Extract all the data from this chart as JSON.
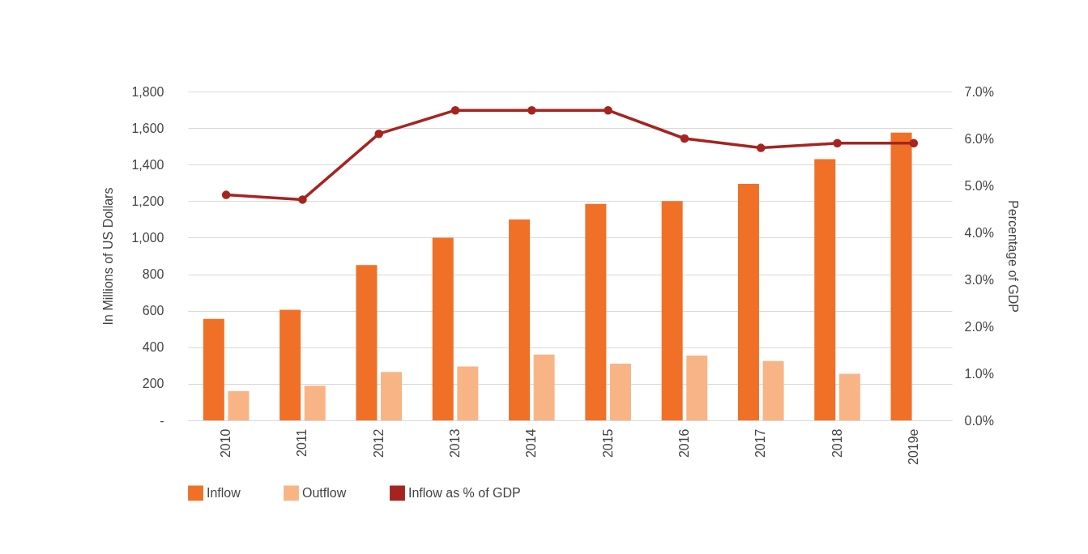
{
  "chart_data": {
    "type": "bar",
    "ylabel": "In Millions of US Dollars",
    "y2label": "Percentage of GDP",
    "categories": [
      "2010",
      "2011",
      "2012",
      "2013",
      "2014",
      "2015",
      "2016",
      "2017",
      "2018",
      "2019e"
    ],
    "series": [
      {
        "name": "Inflow",
        "color": "#f07028",
        "values": [
          555,
          605,
          850,
          1000,
          1100,
          1185,
          1200,
          1295,
          1430,
          1575
        ]
      },
      {
        "name": "Outflow",
        "color": "#f9b486",
        "values": [
          160,
          190,
          265,
          295,
          360,
          310,
          355,
          325,
          255,
          null
        ]
      },
      {
        "name": "Inflow as % of GDP",
        "type": "line",
        "axis": "y2",
        "color": "#a52420",
        "values": [
          4.8,
          4.7,
          6.1,
          6.6,
          6.6,
          6.6,
          6.0,
          5.8,
          5.9,
          5.9
        ]
      }
    ],
    "ylim": [
      0,
      1800
    ],
    "yticks": [
      {
        "value": 0,
        "label": "-"
      },
      {
        "value": 200,
        "label": "200"
      },
      {
        "value": 400,
        "label": "400"
      },
      {
        "value": 600,
        "label": "600"
      },
      {
        "value": 800,
        "label": "800"
      },
      {
        "value": 1000,
        "label": "1,000"
      },
      {
        "value": 1200,
        "label": "1,200"
      },
      {
        "value": 1400,
        "label": "1,400"
      },
      {
        "value": 1600,
        "label": "1,600"
      },
      {
        "value": 1800,
        "label": "1,800"
      }
    ],
    "y2lim": [
      0,
      7
    ],
    "y2ticks": [
      {
        "value": 0,
        "label": "0.0%"
      },
      {
        "value": 1,
        "label": "1.0%"
      },
      {
        "value": 2,
        "label": "2.0%"
      },
      {
        "value": 3,
        "label": "3.0%"
      },
      {
        "value": 4,
        "label": "4.0%"
      },
      {
        "value": 5,
        "label": "5.0%"
      },
      {
        "value": 6,
        "label": "6.0%"
      },
      {
        "value": 7,
        "label": "7.0%"
      }
    ],
    "grid": "y",
    "legend": "bottom",
    "marker": "circle",
    "line_style": "solid"
  }
}
